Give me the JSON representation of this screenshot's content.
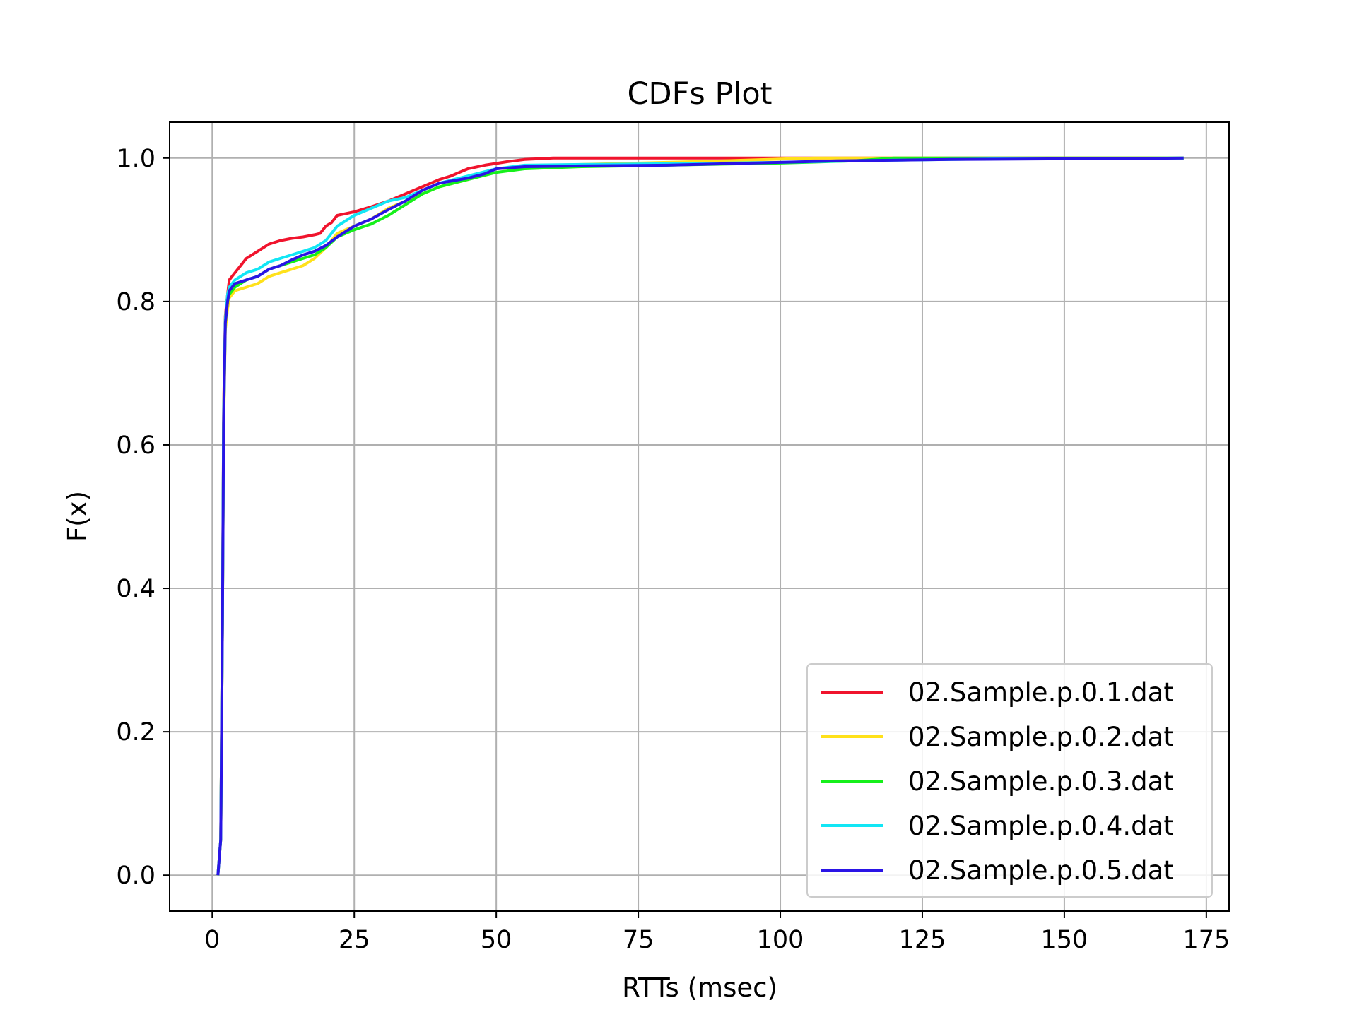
{
  "chart_data": {
    "type": "line",
    "title": "CDFs Plot",
    "xlabel": "RTTs (msec)",
    "ylabel": "F(x)",
    "xlim": [
      -7.5,
      179
    ],
    "ylim": [
      -0.05,
      1.05
    ],
    "xticks": [
      0,
      25,
      50,
      75,
      100,
      125,
      150,
      175
    ],
    "xtick_labels": [
      "0",
      "25",
      "50",
      "75",
      "100",
      "125",
      "150",
      "175"
    ],
    "yticks": [
      0.0,
      0.2,
      0.4,
      0.6,
      0.8,
      1.0
    ],
    "ytick_labels": [
      "0.0",
      "0.2",
      "0.4",
      "0.6",
      "0.8",
      "1.0"
    ],
    "grid": true,
    "legend_position": "lower-right",
    "series": [
      {
        "name": "02.Sample.p.0.1.dat",
        "color": "#f0142d",
        "x": [
          1,
          1.5,
          1.8,
          2.0,
          2.3,
          2.7,
          3.0,
          4.0,
          5.0,
          6.0,
          8.0,
          10.0,
          12.0,
          14.0,
          16.0,
          18.0,
          19.0,
          20.0,
          21.0,
          22.0,
          25.0,
          28.0,
          31.0,
          34.0,
          37.0,
          40.0,
          42.0,
          45.0,
          48.0,
          52.0,
          55.0,
          60.0,
          70.0,
          171.0
        ],
        "y": [
          0.0,
          0.05,
          0.35,
          0.65,
          0.78,
          0.81,
          0.83,
          0.84,
          0.85,
          0.86,
          0.87,
          0.88,
          0.885,
          0.888,
          0.89,
          0.893,
          0.895,
          0.905,
          0.91,
          0.92,
          0.925,
          0.932,
          0.94,
          0.95,
          0.96,
          0.97,
          0.975,
          0.985,
          0.99,
          0.995,
          0.998,
          1.0,
          1.0,
          1.0
        ]
      },
      {
        "name": "02.Sample.p.0.2.dat",
        "color": "#ffe11a",
        "x": [
          1,
          1.5,
          1.8,
          2.0,
          2.3,
          2.7,
          3.0,
          4.0,
          6.0,
          8.0,
          10.0,
          12.0,
          14.0,
          16.0,
          18.0,
          20.0,
          21.0,
          22.0,
          25.0,
          28.0,
          31.0,
          34.0,
          37.0,
          40.0,
          45.0,
          50.0,
          60.0,
          70.0,
          90.0,
          106.0,
          120.0,
          171.0
        ],
        "y": [
          0.0,
          0.05,
          0.35,
          0.62,
          0.76,
          0.79,
          0.805,
          0.815,
          0.82,
          0.825,
          0.835,
          0.84,
          0.845,
          0.85,
          0.86,
          0.875,
          0.885,
          0.895,
          0.905,
          0.915,
          0.93,
          0.94,
          0.95,
          0.96,
          0.97,
          0.985,
          0.99,
          0.992,
          0.996,
          1.0,
          1.0,
          1.0
        ]
      },
      {
        "name": "02.Sample.p.0.3.dat",
        "color": "#16f01b",
        "x": [
          1,
          1.5,
          1.8,
          2.0,
          2.3,
          2.7,
          3.0,
          4.0,
          6.0,
          8.0,
          10.0,
          12.0,
          14.0,
          16.0,
          18.0,
          20.0,
          22.0,
          25.0,
          28.0,
          31.0,
          34.0,
          37.0,
          40.0,
          45.0,
          50.0,
          55.0,
          65.0,
          80.0,
          100.0,
          113.0,
          120.0,
          171.0
        ],
        "y": [
          0.0,
          0.05,
          0.35,
          0.63,
          0.77,
          0.8,
          0.81,
          0.82,
          0.83,
          0.835,
          0.845,
          0.85,
          0.855,
          0.86,
          0.865,
          0.875,
          0.89,
          0.9,
          0.908,
          0.92,
          0.935,
          0.95,
          0.96,
          0.97,
          0.98,
          0.985,
          0.988,
          0.99,
          0.993,
          0.996,
          1.0,
          1.0
        ]
      },
      {
        "name": "02.Sample.p.0.4.dat",
        "color": "#12e6f5",
        "x": [
          1,
          1.5,
          1.8,
          2.0,
          2.3,
          2.7,
          3.0,
          4.0,
          6.0,
          8.0,
          10.0,
          12.0,
          14.0,
          16.0,
          18.0,
          20.0,
          22.0,
          25.0,
          28.0,
          31.0,
          34.0,
          37.0,
          40.0,
          45.0,
          50.0,
          55.0,
          65.0,
          80.0,
          100.0,
          120.0,
          140.0,
          171.0
        ],
        "y": [
          0.0,
          0.05,
          0.35,
          0.64,
          0.775,
          0.81,
          0.82,
          0.83,
          0.84,
          0.845,
          0.855,
          0.86,
          0.865,
          0.87,
          0.875,
          0.885,
          0.905,
          0.92,
          0.93,
          0.94,
          0.945,
          0.955,
          0.965,
          0.975,
          0.985,
          0.99,
          0.991,
          0.992,
          0.994,
          0.997,
          0.999,
          1.0
        ]
      },
      {
        "name": "02.Sample.p.0.5.dat",
        "color": "#2a14e6",
        "x": [
          1,
          1.5,
          1.8,
          2.0,
          2.3,
          2.7,
          3.0,
          4.0,
          6.0,
          8.0,
          10.0,
          12.0,
          14.0,
          16.0,
          18.0,
          20.0,
          22.0,
          25.0,
          28.0,
          31.0,
          34.0,
          37.0,
          40.0,
          45.0,
          48.0,
          50.0,
          55.0,
          65.0,
          80.0,
          95.0,
          110.0,
          130.0,
          171.0
        ],
        "y": [
          0.0,
          0.05,
          0.35,
          0.63,
          0.77,
          0.8,
          0.815,
          0.825,
          0.83,
          0.835,
          0.845,
          0.85,
          0.858,
          0.865,
          0.87,
          0.878,
          0.89,
          0.905,
          0.915,
          0.928,
          0.94,
          0.955,
          0.965,
          0.972,
          0.978,
          0.985,
          0.988,
          0.989,
          0.99,
          0.993,
          0.996,
          0.998,
          1.0
        ]
      }
    ]
  }
}
